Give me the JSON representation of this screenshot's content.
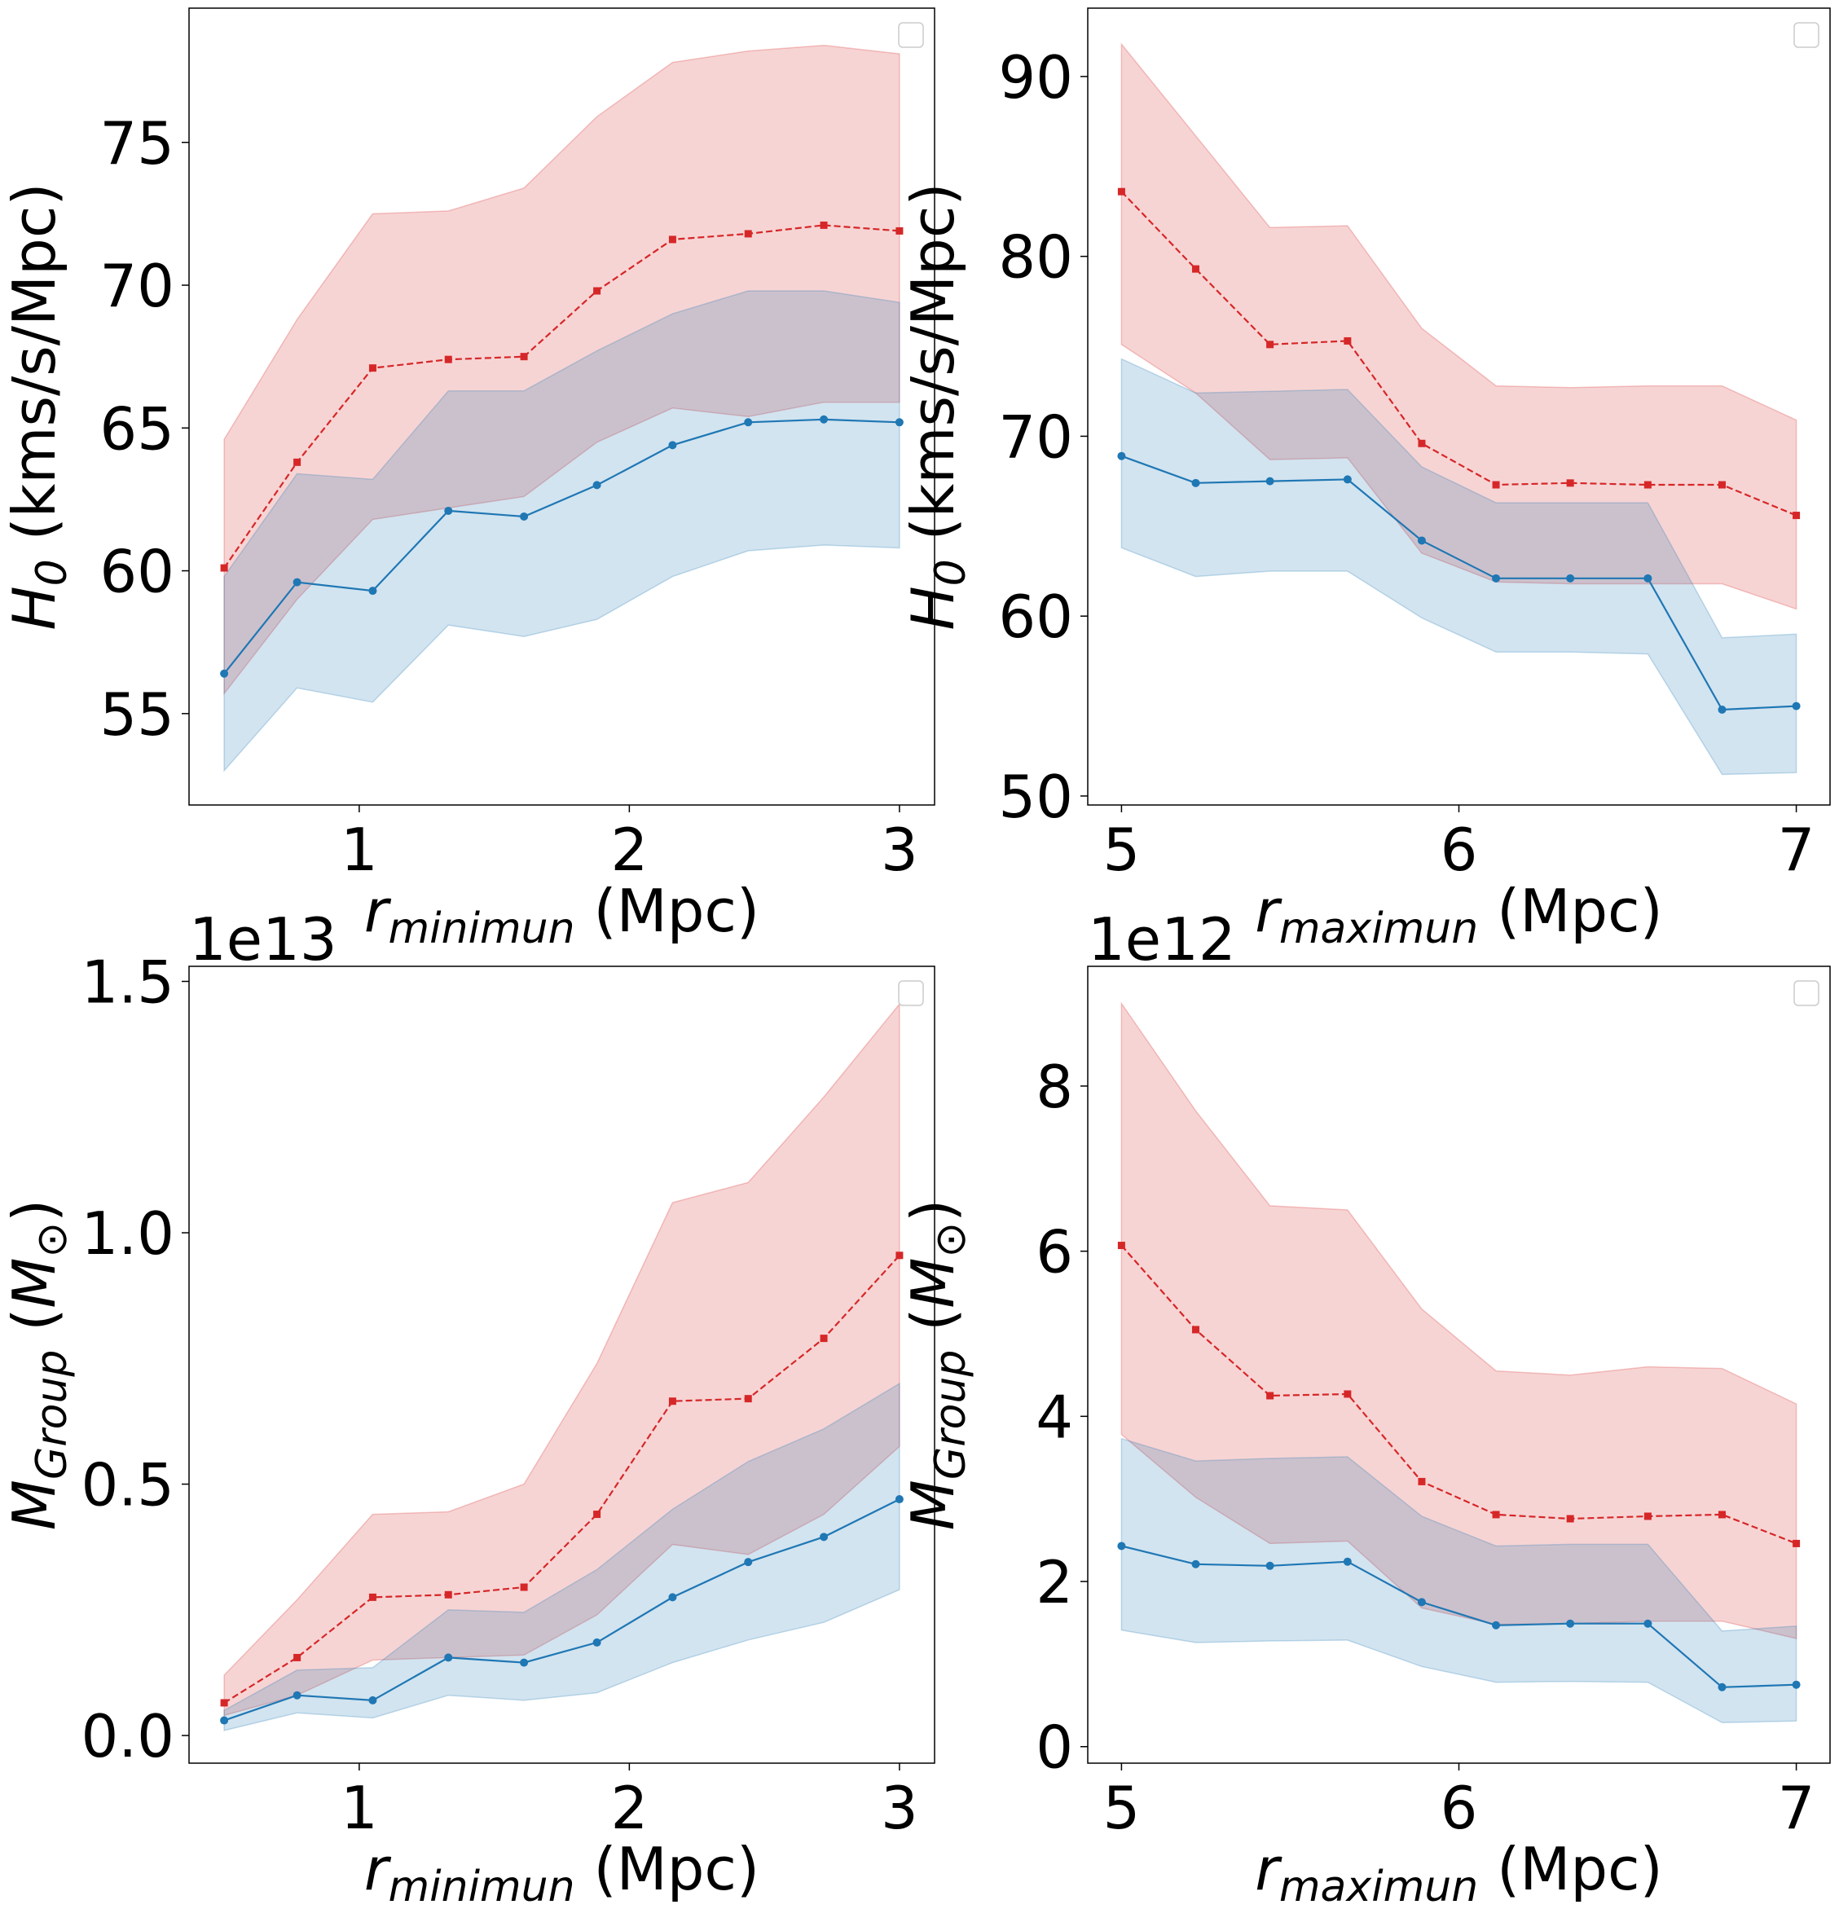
{
  "colors": {
    "blue": "#1f77b4",
    "red": "#d62728",
    "blue_band": "#1f77b4",
    "red_band": "#d62728"
  },
  "chart_data": [
    {
      "id": "p1",
      "type": "line",
      "xlabel_main": "r",
      "xlabel_sub": "minimun",
      "xlabel_unit": " (Mpc)",
      "ylabel_main": "H",
      "ylabel_sub": "0",
      "ylabel_unit": " (kms/s/Mpc)",
      "offset_label": "",
      "xlim": [
        0.37,
        3.13
      ],
      "ylim": [
        51.8,
        79.7
      ],
      "xticks": [
        1,
        2,
        3
      ],
      "xtick_labels": [
        "1",
        "2",
        "3"
      ],
      "yticks": [
        55,
        60,
        65,
        70,
        75
      ],
      "ytick_labels": [
        "55",
        "60",
        "65",
        "70",
        "75"
      ],
      "x": [
        0.5,
        0.77,
        1.05,
        1.33,
        1.61,
        1.88,
        2.16,
        2.44,
        2.72,
        3.0
      ],
      "series": [
        {
          "name": "red",
          "style": "dashed-square",
          "values": [
            60.1,
            63.8,
            67.1,
            67.4,
            67.5,
            69.8,
            71.6,
            71.8,
            72.1,
            71.9
          ],
          "band_low": [
            55.7,
            59.0,
            61.8,
            62.2,
            62.6,
            64.5,
            65.7,
            65.4,
            65.9,
            65.9
          ],
          "band_high": [
            64.6,
            68.8,
            72.5,
            72.6,
            73.4,
            75.9,
            77.8,
            78.2,
            78.4,
            78.1
          ]
        },
        {
          "name": "blue",
          "style": "solid-circle",
          "values": [
            56.4,
            59.6,
            59.3,
            62.1,
            61.9,
            63.0,
            64.4,
            65.2,
            65.3,
            65.2
          ],
          "band_low": [
            53.0,
            55.9,
            55.4,
            58.1,
            57.7,
            58.3,
            59.8,
            60.7,
            60.9,
            60.8
          ],
          "band_high": [
            59.8,
            63.4,
            63.2,
            66.3,
            66.3,
            67.7,
            69.0,
            69.8,
            69.8,
            69.4
          ]
        }
      ]
    },
    {
      "id": "p2",
      "type": "line",
      "xlabel_main": "r",
      "xlabel_sub": "maximun",
      "xlabel_unit": " (Mpc)",
      "ylabel_main": "H",
      "ylabel_sub": "0",
      "ylabel_unit": " (kms/s/Mpc)",
      "offset_label": "",
      "xlim": [
        4.9,
        7.1
      ],
      "ylim": [
        49.5,
        93.8
      ],
      "xticks": [
        5,
        6,
        7
      ],
      "xtick_labels": [
        "5",
        "6",
        "7"
      ],
      "yticks": [
        50,
        60,
        70,
        80,
        90
      ],
      "ytick_labels": [
        "50",
        "60",
        "70",
        "80",
        "90"
      ],
      "x": [
        5.0,
        5.22,
        5.44,
        5.67,
        5.89,
        6.11,
        6.33,
        6.56,
        6.78,
        7.0
      ],
      "series": [
        {
          "name": "red",
          "style": "dashed-square",
          "values": [
            83.6,
            79.3,
            75.1,
            75.3,
            69.6,
            67.3,
            67.4,
            67.3,
            67.3,
            65.6
          ],
          "band_low": [
            75.1,
            72.4,
            68.7,
            68.8,
            63.5,
            61.9,
            61.8,
            61.8,
            61.8,
            60.4
          ],
          "band_high": [
            91.8,
            86.7,
            81.6,
            81.7,
            76.0,
            72.8,
            72.7,
            72.8,
            72.8,
            70.9
          ]
        },
        {
          "name": "blue",
          "style": "solid-circle",
          "values": [
            68.9,
            67.4,
            67.5,
            67.6,
            64.2,
            62.1,
            62.1,
            62.1,
            54.8,
            55.0
          ],
          "band_low": [
            63.8,
            62.2,
            62.5,
            62.5,
            59.9,
            58.0,
            58.0,
            57.9,
            51.2,
            51.3
          ],
          "band_high": [
            74.3,
            72.4,
            72.5,
            72.6,
            68.3,
            66.3,
            66.3,
            66.3,
            58.8,
            59.0
          ]
        }
      ]
    },
    {
      "id": "p3",
      "type": "line",
      "xlabel_main": "r",
      "xlabel_sub": "minimun",
      "xlabel_unit": " (Mpc)",
      "ylabel_main": "M",
      "ylabel_sub": "Group",
      "ylabel_unit_pre": " (",
      "ylabel_unit_sym": "M",
      "ylabel_unit_sub": "⊙",
      "ylabel_unit_post": ")",
      "offset_label": "1e13",
      "xlim": [
        0.37,
        3.13
      ],
      "ylim": [
        -0.055,
        1.53
      ],
      "xticks": [
        1,
        2,
        3
      ],
      "xtick_labels": [
        "1",
        "2",
        "3"
      ],
      "yticks": [
        0.0,
        0.5,
        1.0,
        1.5
      ],
      "ytick_labels": [
        "0.0",
        "0.5",
        "1.0",
        "1.5"
      ],
      "x": [
        0.5,
        0.77,
        1.05,
        1.33,
        1.61,
        1.88,
        2.16,
        2.44,
        2.72,
        3.0
      ],
      "series": [
        {
          "name": "red",
          "style": "dashed-square",
          "values": [
            0.065,
            0.155,
            0.275,
            0.28,
            0.295,
            0.44,
            0.665,
            0.67,
            0.79,
            0.955
          ],
          "band_low": [
            0.04,
            0.08,
            0.15,
            0.155,
            0.16,
            0.24,
            0.38,
            0.36,
            0.44,
            0.575
          ],
          "band_high": [
            0.12,
            0.27,
            0.44,
            0.445,
            0.5,
            0.74,
            1.06,
            1.1,
            1.27,
            1.455
          ]
        },
        {
          "name": "blue",
          "style": "solid-circle",
          "values": [
            0.03,
            0.08,
            0.07,
            0.155,
            0.145,
            0.185,
            0.275,
            0.345,
            0.395,
            0.47
          ],
          "band_low": [
            0.01,
            0.045,
            0.035,
            0.08,
            0.07,
            0.085,
            0.145,
            0.19,
            0.225,
            0.29
          ],
          "band_high": [
            0.05,
            0.13,
            0.135,
            0.25,
            0.245,
            0.33,
            0.45,
            0.545,
            0.61,
            0.7
          ]
        }
      ]
    },
    {
      "id": "p4",
      "type": "line",
      "xlabel_main": "r",
      "xlabel_sub": "maximun",
      "xlabel_unit": " (Mpc)",
      "ylabel_main": "M",
      "ylabel_sub": "Group",
      "ylabel_unit_pre": " (",
      "ylabel_unit_sym": "M",
      "ylabel_unit_sub": "⊙",
      "ylabel_unit_post": ")",
      "offset_label": "1e12",
      "xlim": [
        4.9,
        7.1
      ],
      "ylim": [
        -0.2,
        9.45
      ],
      "xticks": [
        5,
        6,
        7
      ],
      "xtick_labels": [
        "5",
        "6",
        "7"
      ],
      "yticks": [
        0,
        2,
        4,
        6,
        8
      ],
      "ytick_labels": [
        "0",
        "2",
        "4",
        "6",
        "8"
      ],
      "x": [
        5.0,
        5.22,
        5.44,
        5.67,
        5.89,
        6.11,
        6.33,
        6.56,
        6.78,
        7.0
      ],
      "series": [
        {
          "name": "red",
          "style": "dashed-square",
          "values": [
            6.07,
            5.05,
            4.25,
            4.27,
            3.21,
            2.81,
            2.76,
            2.79,
            2.81,
            2.46
          ],
          "band_low": [
            3.78,
            3.02,
            2.46,
            2.49,
            1.68,
            1.48,
            1.49,
            1.52,
            1.52,
            1.31
          ],
          "band_high": [
            9.0,
            7.7,
            6.55,
            6.5,
            5.3,
            4.55,
            4.5,
            4.6,
            4.58,
            4.15
          ]
        },
        {
          "name": "blue",
          "style": "solid-circle",
          "values": [
            2.43,
            2.21,
            2.19,
            2.24,
            1.75,
            1.47,
            1.49,
            1.49,
            0.72,
            0.75
          ],
          "band_low": [
            1.41,
            1.26,
            1.28,
            1.29,
            0.97,
            0.78,
            0.79,
            0.78,
            0.29,
            0.31
          ],
          "band_high": [
            3.73,
            3.46,
            3.49,
            3.51,
            2.79,
            2.43,
            2.45,
            2.45,
            1.4,
            1.46
          ]
        }
      ]
    }
  ]
}
